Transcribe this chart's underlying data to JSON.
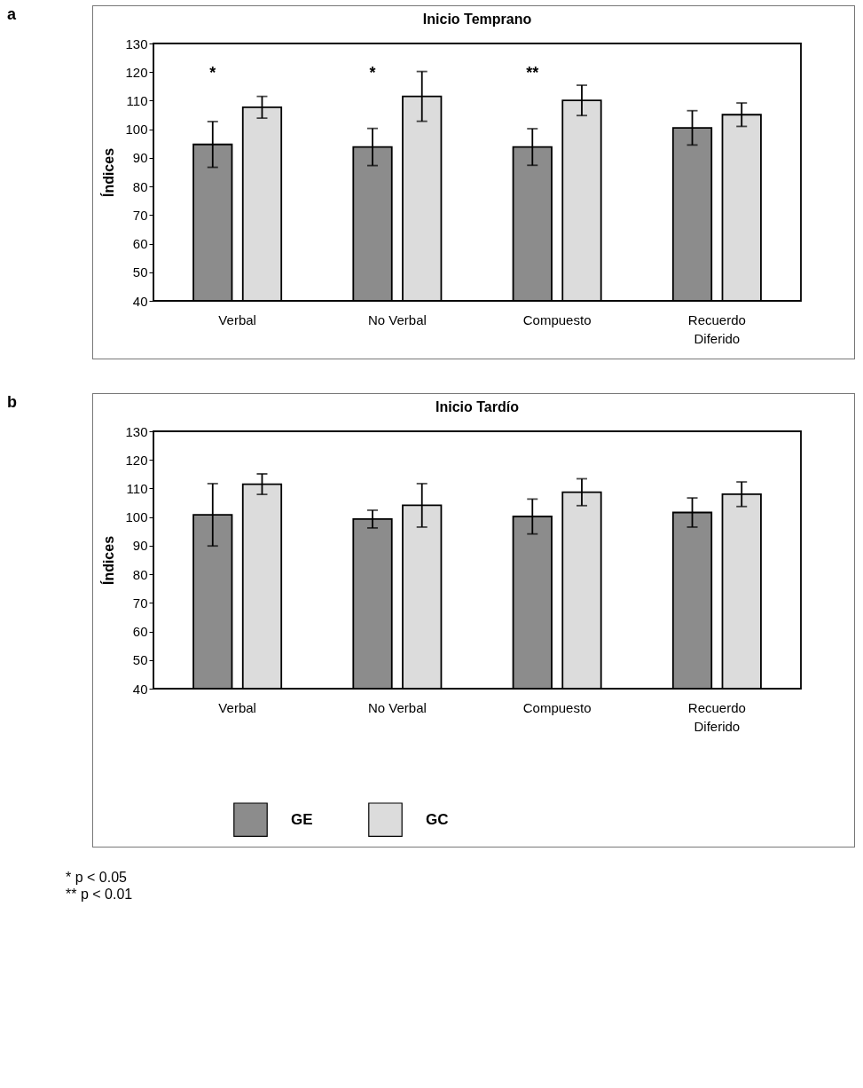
{
  "chart_data": [
    {
      "type": "bar",
      "title": "Inicio Temprano",
      "ylabel": "Índices",
      "categories": [
        "Verbal",
        "No Verbal",
        "Compuesto",
        "Recuerdo Diferido"
      ],
      "ylim": [
        40,
        130
      ],
      "yticks": [
        40,
        50,
        60,
        70,
        80,
        90,
        100,
        110,
        120,
        130
      ],
      "grid": false,
      "legend": false,
      "series": [
        {
          "color": "#8c8c8c",
          "values": [
            94.7,
            93.8,
            93.8,
            100.5
          ],
          "errors": [
            8,
            6.5,
            6.4,
            6
          ]
        },
        {
          "color": "#dcdcdc",
          "values": [
            107.7,
            111.5,
            110.1,
            105.1
          ],
          "errors": [
            3.8,
            8.7,
            5.3,
            4.1
          ]
        }
      ],
      "annotations": [
        "a",
        "*",
        "*",
        "**"
      ]
    },
    {
      "type": "bar",
      "title": "Inicio Tardío",
      "ylabel": "Índices",
      "categories": [
        "Verbal",
        "No Verbal",
        "Compuesto",
        "Recuerdo Diferido"
      ],
      "ylim": [
        40,
        130
      ],
      "yticks": [
        40,
        50,
        60,
        70,
        80,
        90,
        100,
        110,
        120,
        130
      ],
      "grid": false,
      "legend": "bottom",
      "series": [
        {
          "name": "GE",
          "color": "#8c8c8c",
          "values": [
            100.8,
            99.3,
            100.2,
            101.6
          ],
          "errors": [
            10.9,
            3.1,
            6.1,
            5.1
          ]
        },
        {
          "name": "GC",
          "color": "#dcdcdc",
          "values": [
            111.5,
            104.1,
            108.7,
            108
          ],
          "errors": [
            3.6,
            7.6,
            4.7,
            4.3
          ]
        }
      ],
      "annotations": [
        "b",
        "* p < 0.05",
        "** p < 0.01"
      ]
    }
  ]
}
